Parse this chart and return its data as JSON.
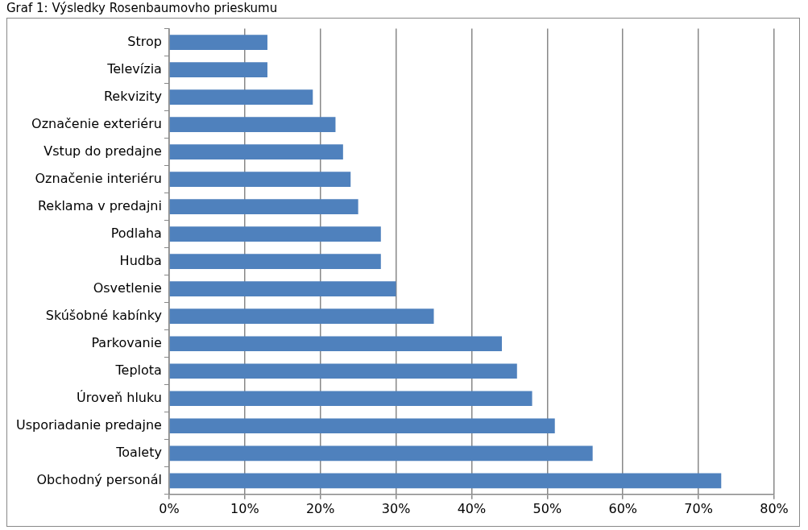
{
  "chart_data": {
    "type": "bar",
    "orientation": "horizontal",
    "title": "Graf 1: Výsledky Rosenbaumovho prieskumu",
    "categories": [
      "Strop",
      "Televízia",
      "Rekvizity",
      "Označenie exteriéru",
      "Vstup do predajne",
      "Označenie interiéru",
      "Reklama v predajni",
      "Podlaha",
      "Hudba",
      "Osvetlenie",
      "Skúšobné kabínky",
      "Parkovanie",
      "Teplota",
      "Úroveň hluku",
      "Usporiadanie predajne",
      "Toalety",
      "Obchodný personál"
    ],
    "values": [
      13,
      13,
      19,
      22,
      23,
      24,
      25,
      28,
      28,
      30,
      35,
      44,
      46,
      48,
      51,
      56,
      73
    ],
    "color": "#4f81bd",
    "xlim": [
      0,
      80
    ],
    "xticks": [
      {
        "value": 0,
        "label": "0%"
      },
      {
        "value": 10,
        "label": "10%"
      },
      {
        "value": 20,
        "label": "20%"
      },
      {
        "value": 30,
        "label": "30%"
      },
      {
        "value": 40,
        "label": "40%"
      },
      {
        "value": 50,
        "label": "50%"
      },
      {
        "value": 60,
        "label": "60%"
      },
      {
        "value": 70,
        "label": "70%"
      },
      {
        "value": 80,
        "label": "80%"
      }
    ],
    "grid": "x",
    "legend": false
  }
}
